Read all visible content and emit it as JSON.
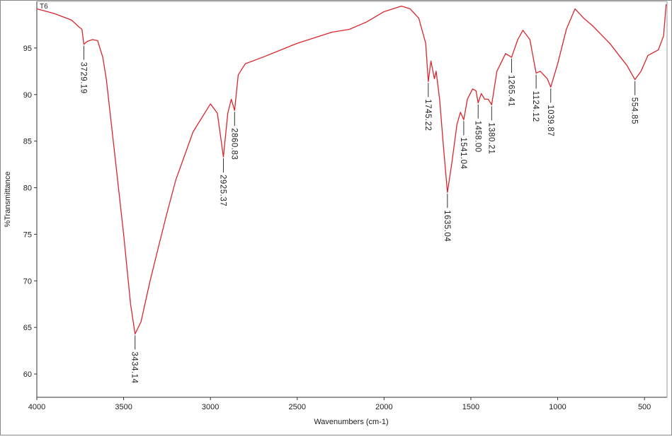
{
  "chart_data": {
    "type": "line",
    "sample_label": "T6",
    "x_label": "Wavenumbers (cm-1)",
    "y_label": "%Transmittance",
    "xlim": [
      4000,
      370
    ],
    "ylim": [
      57.5,
      100
    ],
    "xticks": [
      4000,
      3500,
      3000,
      2500,
      2000,
      1500,
      1000,
      500
    ],
    "yticks": [
      60,
      65,
      70,
      75,
      80,
      85,
      90,
      95
    ],
    "series": [
      {
        "color": "#d9262c",
        "x": [
          4000,
          3900,
          3800,
          3760,
          3740,
          3729.19,
          3710,
          3680,
          3650,
          3620,
          3600,
          3550,
          3500,
          3460,
          3434.14,
          3400,
          3350,
          3300,
          3250,
          3200,
          3100,
          3000,
          2960,
          2925.37,
          2900,
          2880,
          2860.83,
          2840,
          2800,
          2700,
          2500,
          2300,
          2200,
          2100,
          2000,
          1900,
          1850,
          1800,
          1760,
          1745.22,
          1730,
          1710,
          1700,
          1680,
          1660,
          1635.04,
          1610,
          1580,
          1560,
          1541.04,
          1520,
          1490,
          1470,
          1458.0,
          1440,
          1420,
          1400,
          1380.21,
          1350,
          1300,
          1265.41,
          1230,
          1200,
          1160,
          1124.12,
          1100,
          1060,
          1039.87,
          1000,
          950,
          900,
          850,
          800,
          700,
          600,
          554.85,
          520,
          480,
          420,
          390,
          375
        ],
        "values": [
          99.2,
          98.7,
          98.0,
          97.3,
          97.0,
          95.4,
          95.7,
          95.9,
          95.8,
          94.0,
          91.7,
          83.4,
          75.0,
          67.5,
          64.3,
          65.6,
          69.8,
          73.6,
          77.3,
          80.8,
          86.0,
          89.0,
          88.0,
          83.3,
          88.0,
          89.5,
          88.3,
          92.1,
          93.3,
          94.0,
          95.5,
          96.7,
          97.0,
          97.8,
          98.9,
          99.5,
          99.2,
          98.2,
          95.5,
          91.4,
          93.6,
          91.7,
          92.5,
          89.5,
          84.9,
          79.5,
          82.6,
          86.8,
          88.1,
          87.3,
          89.5,
          90.6,
          90.4,
          89.1,
          90.1,
          89.5,
          89.5,
          88.9,
          92.5,
          94.4,
          94.0,
          95.9,
          96.9,
          95.9,
          92.3,
          92.5,
          91.7,
          90.8,
          93.3,
          97.0,
          99.2,
          98.2,
          97.4,
          95.5,
          93.1,
          91.6,
          92.5,
          94.2,
          94.8,
          96.3,
          99.7
        ]
      }
    ],
    "annotations": [
      {
        "text": "3729.19",
        "x": 3729.19,
        "y": 95.4
      },
      {
        "text": "3434.14",
        "x": 3434.14,
        "y": 64.3
      },
      {
        "text": "2925.37",
        "x": 2925.37,
        "y": 83.3
      },
      {
        "text": "2860.83",
        "x": 2860.83,
        "y": 88.3
      },
      {
        "text": "1745.22",
        "x": 1745.22,
        "y": 91.4
      },
      {
        "text": "1635.04",
        "x": 1635.04,
        "y": 79.5
      },
      {
        "text": "1541.04",
        "x": 1541.04,
        "y": 87.3
      },
      {
        "text": "1458.00",
        "x": 1458.0,
        "y": 89.1
      },
      {
        "text": "1380.21",
        "x": 1380.21,
        "y": 88.9
      },
      {
        "text": "1265.41",
        "x": 1265.41,
        "y": 94.0
      },
      {
        "text": "1124.12",
        "x": 1124.12,
        "y": 92.3
      },
      {
        "text": "1039.87",
        "x": 1039.87,
        "y": 90.8
      },
      {
        "text": "554.85",
        "x": 554.85,
        "y": 91.6
      }
    ]
  }
}
